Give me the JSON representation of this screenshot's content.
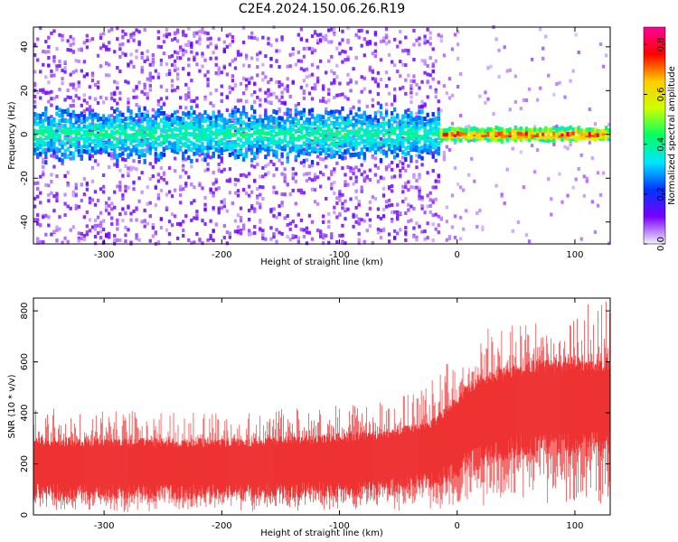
{
  "title": "C2E4.2024.150.06.26.R19",
  "chart_data": [
    {
      "type": "heatmap",
      "xlabel": "Height of straight line (km)",
      "ylabel": "Frequency (Hz)",
      "xlim": [
        -360,
        130
      ],
      "ylim": [
        -50,
        49
      ],
      "xticks": [
        -300,
        -200,
        -100,
        0,
        100
      ],
      "xtick_labels": [
        "-300",
        "-200",
        "-100",
        "0",
        "100"
      ],
      "yticks": [
        -40,
        -20,
        0,
        20,
        40
      ],
      "ytick_labels": [
        "-40",
        "-20",
        "0",
        "20",
        "40"
      ],
      "band_center_hz": 0,
      "band_halfwidth_hz_left": 10,
      "band_halfwidth_hz_right": 2,
      "transition_km": -15,
      "colorbar": {
        "label": "Normalized spectral amplitude",
        "range": [
          0,
          0.87
        ],
        "ticks": [
          0.0,
          0.2,
          0.4,
          0.6,
          0.8
        ],
        "tick_labels": [
          "0.0",
          "0.2",
          "0.4",
          "0.6",
          "0.8"
        ],
        "colormap": [
          "#f2f2fb",
          "#7b00ff",
          "#0033ff",
          "#00e5ff",
          "#00ff66",
          "#ccff00",
          "#ffcc00",
          "#ff0000",
          "#ff0099"
        ]
      }
    },
    {
      "type": "area",
      "xlabel": "Height of straight line (km)",
      "ylabel": "SNR (10 * v/v)",
      "xlim": [
        -360,
        130
      ],
      "ylim": [
        0,
        850
      ],
      "xticks": [
        -300,
        -200,
        -100,
        0,
        100
      ],
      "xtick_labels": [
        "-300",
        "-200",
        "-100",
        "0",
        "100"
      ],
      "yticks": [
        0,
        200,
        400,
        600,
        800
      ],
      "ytick_labels": [
        "0",
        "200",
        "400",
        "600",
        "800"
      ],
      "color": "#ee3333",
      "envelope": {
        "x": [
          -360,
          -300,
          -200,
          -100,
          -50,
          -20,
          0,
          20,
          50,
          100,
          130
        ],
        "lower": [
          60,
          60,
          60,
          70,
          80,
          100,
          140,
          180,
          220,
          230,
          230
        ],
        "upper": [
          310,
          300,
          300,
          320,
          340,
          380,
          480,
          560,
          600,
          620,
          620
        ],
        "peaks": [
          420,
          410,
          400,
          430,
          460,
          540,
          680,
          720,
          780,
          840,
          840
        ]
      }
    }
  ]
}
